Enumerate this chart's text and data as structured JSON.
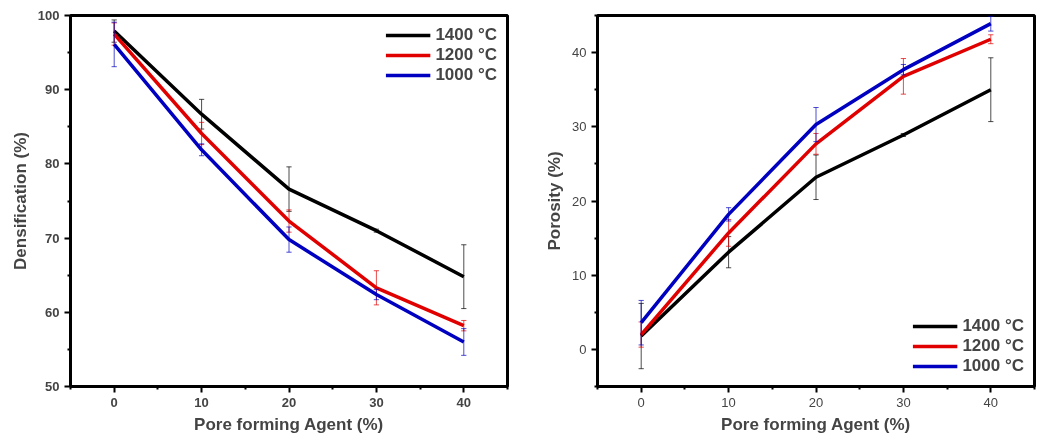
{
  "chart_data": [
    {
      "type": "line",
      "xlabel": "Pore forming Agent (%)",
      "ylabel": "Densification (%)",
      "x": [
        0,
        10,
        20,
        30,
        40
      ],
      "xlim": [
        -5,
        45
      ],
      "ylim": [
        50,
        100
      ],
      "xticks": [
        0,
        10,
        20,
        30,
        40
      ],
      "yticks": [
        50,
        60,
        70,
        80,
        90,
        100
      ],
      "legend": "top right",
      "series": [
        {
          "name": "1400 °C",
          "color": "#000000",
          "values": [
            97.9,
            86.7,
            76.6,
            71.0,
            64.8
          ],
          "errors": [
            1.5,
            2,
            3,
            0.2,
            4.3
          ]
        },
        {
          "name": "1200 °C",
          "color": "#e00000",
          "values": [
            97.5,
            84.1,
            72.3,
            63.3,
            58.2
          ],
          "errors": [
            1.5,
            1.5,
            1.5,
            2.3,
            0.7
          ]
        },
        {
          "name": "1000 °C",
          "color": "#0000c0",
          "values": [
            96.1,
            81.9,
            69.8,
            62.4,
            56.0
          ],
          "errors": [
            3,
            0.8,
            1.7,
            0.7,
            1.8
          ]
        }
      ]
    },
    {
      "type": "line",
      "xlabel": "Pore forming Agent (%)",
      "ylabel": "Porosity (%)",
      "x": [
        0,
        10,
        20,
        30,
        40
      ],
      "xlim": [
        -5,
        45
      ],
      "ylim": [
        -5,
        45
      ],
      "xticks": [
        0,
        10,
        20,
        30,
        40
      ],
      "yticks": [
        0,
        10,
        20,
        30,
        40
      ],
      "legend": "bottom right",
      "series": [
        {
          "name": "1400 °C",
          "color": "#000000",
          "values": [
            1.8,
            13.1,
            23.2,
            28.9,
            35.0
          ],
          "errors": [
            4.4,
            2.1,
            3,
            0.2,
            4.3
          ]
        },
        {
          "name": "1200 °C",
          "color": "#e00000",
          "values": [
            2.0,
            15.7,
            27.7,
            36.8,
            41.8
          ],
          "errors": [
            1.7,
            1.8,
            1.4,
            2.4,
            0.6
          ]
        },
        {
          "name": "1000 °C",
          "color": "#0000c0",
          "values": [
            3.6,
            18.2,
            30.3,
            37.7,
            43.9
          ],
          "errors": [
            3,
            0.9,
            2.3,
            0.7,
            1.0
          ]
        }
      ]
    }
  ]
}
